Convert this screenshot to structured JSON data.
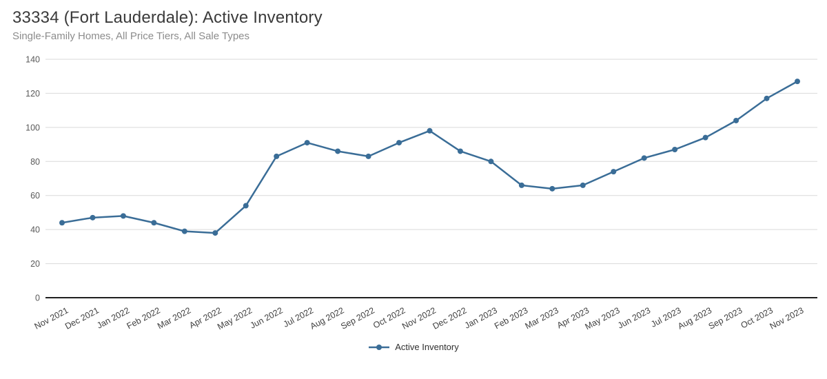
{
  "header": {
    "title": "33334 (Fort Lauderdale): Active Inventory",
    "subtitle": "Single-Family Homes, All Price Tiers, All Sale Types"
  },
  "legend": {
    "items": [
      {
        "label": "Active Inventory"
      }
    ],
    "position": "bottom-center"
  },
  "colors": {
    "series_line": "#3a6d97",
    "gridline": "#d9d9d9",
    "axis_line": "#1f1f1f",
    "y_tick_label": "#595959",
    "x_tick_label": "#3f3f3f",
    "title": "#3a3a3a",
    "subtitle": "#8c8c8c"
  },
  "chart_data": {
    "type": "line",
    "title": "33334 (Fort Lauderdale): Active Inventory",
    "subtitle": "Single-Family Homes, All Price Tiers, All Sale Types",
    "categories": [
      "Nov 2021",
      "Dec 2021",
      "Jan 2022",
      "Feb 2022",
      "Mar 2022",
      "Apr 2022",
      "May 2022",
      "Jun 2022",
      "Jul 2022",
      "Aug 2022",
      "Sep 2022",
      "Oct 2022",
      "Nov 2022",
      "Dec 2022",
      "Jan 2023",
      "Feb 2023",
      "Mar 2023",
      "Apr 2023",
      "May 2023",
      "Jun 2023",
      "Jul 2023",
      "Aug 2023",
      "Sep 2023",
      "Oct 2023",
      "Nov 2023"
    ],
    "series": [
      {
        "name": "Active Inventory",
        "values": [
          44,
          47,
          48,
          44,
          39,
          38,
          54,
          83,
          91,
          86,
          83,
          91,
          98,
          86,
          80,
          66,
          64,
          66,
          74,
          82,
          87,
          94,
          104,
          117,
          127
        ]
      }
    ],
    "xlabel": "",
    "ylabel": "",
    "ylim": [
      0,
      140
    ],
    "yticks": [
      0,
      20,
      40,
      60,
      80,
      100,
      120,
      140
    ],
    "grid": true,
    "marker": "circle",
    "x_label_rotation_deg": -28,
    "legend_position": "bottom"
  }
}
